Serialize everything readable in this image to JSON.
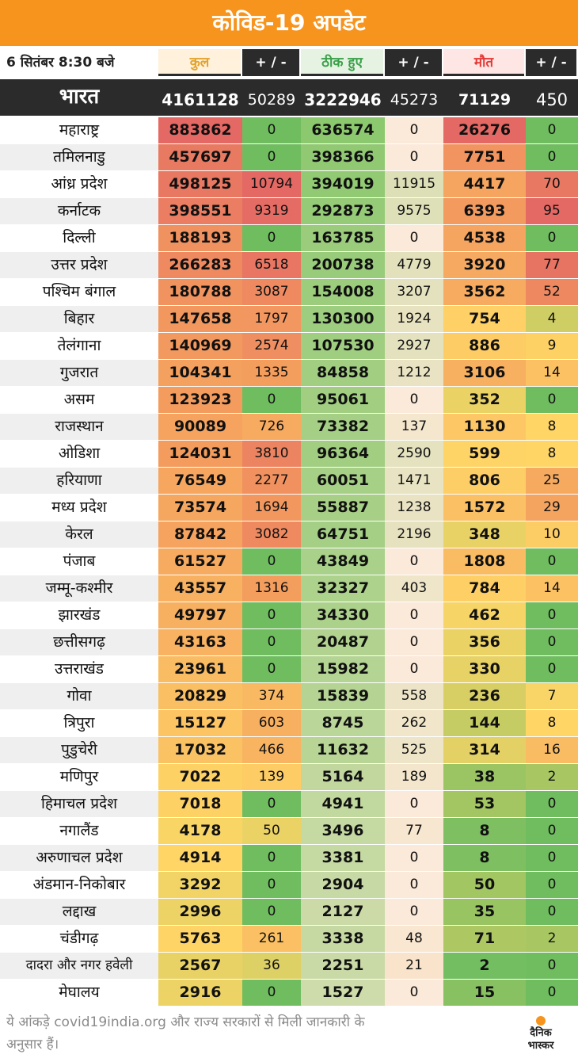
{
  "header": {
    "title": "कोविड-19 अपडेट",
    "date": "6 सितंबर  8:30 बजे"
  },
  "columns": [
    {
      "label": "कुल",
      "color": "#e2a32b"
    },
    {
      "label": "+ / -",
      "color": "#ffffff"
    },
    {
      "label": "ठीक हुए",
      "color": "#3aa04a"
    },
    {
      "label": "+ / -",
      "color": "#ffffff"
    },
    {
      "label": "मौत",
      "color": "#e53935"
    },
    {
      "label": "+ / -",
      "color": "#ffffff"
    }
  ],
  "india": {
    "name": "भारत",
    "values": [
      "4161128",
      "50289",
      "3222946",
      "45273",
      "71129",
      "450"
    ]
  },
  "chart_data": {
    "type": "table",
    "title": "कोविड-19 अपडेट",
    "columns": [
      "कुल",
      "+ / -",
      "ठीक हुए",
      "+ / -",
      "मौत",
      "+ / -"
    ],
    "rows": [
      {
        "name": "महाराष्ट्र",
        "values": [
          883862,
          0,
          636574,
          0,
          26276,
          0
        ]
      },
      {
        "name": "तमिलनाडु",
        "values": [
          457697,
          0,
          398366,
          0,
          7751,
          0
        ]
      },
      {
        "name": "आंध्र प्रदेश",
        "values": [
          498125,
          10794,
          394019,
          11915,
          4417,
          70
        ]
      },
      {
        "name": "कर्नाटक",
        "values": [
          398551,
          9319,
          292873,
          9575,
          6393,
          95
        ]
      },
      {
        "name": "दिल्ली",
        "values": [
          188193,
          0,
          163785,
          0,
          4538,
          0
        ]
      },
      {
        "name": "उत्तर प्रदेश",
        "values": [
          266283,
          6518,
          200738,
          4779,
          3920,
          77
        ]
      },
      {
        "name": "पश्चिम बंगाल",
        "values": [
          180788,
          3087,
          154008,
          3207,
          3562,
          52
        ]
      },
      {
        "name": "बिहार",
        "values": [
          147658,
          1797,
          130300,
          1924,
          754,
          4
        ]
      },
      {
        "name": "तेलंगाना",
        "values": [
          140969,
          2574,
          107530,
          2927,
          886,
          9
        ]
      },
      {
        "name": "गुजरात",
        "values": [
          104341,
          1335,
          84858,
          1212,
          3106,
          14
        ]
      },
      {
        "name": "असम",
        "values": [
          123923,
          0,
          95061,
          0,
          352,
          0
        ]
      },
      {
        "name": "राजस्थान",
        "values": [
          90089,
          726,
          73382,
          137,
          1130,
          8
        ]
      },
      {
        "name": "ओडिशा",
        "values": [
          124031,
          3810,
          96364,
          2590,
          599,
          8
        ]
      },
      {
        "name": "हरियाणा",
        "values": [
          76549,
          2277,
          60051,
          1471,
          806,
          25
        ]
      },
      {
        "name": "मध्य प्रदेश",
        "values": [
          73574,
          1694,
          55887,
          1238,
          1572,
          29
        ]
      },
      {
        "name": "केरल",
        "values": [
          87842,
          3082,
          64751,
          2196,
          348,
          10
        ]
      },
      {
        "name": "पंजाब",
        "values": [
          61527,
          0,
          43849,
          0,
          1808,
          0
        ]
      },
      {
        "name": "जम्मू-कश्मीर",
        "values": [
          43557,
          1316,
          32327,
          403,
          784,
          14
        ]
      },
      {
        "name": "झारखंड",
        "values": [
          49797,
          0,
          34330,
          0,
          462,
          0
        ]
      },
      {
        "name": "छत्तीसगढ़",
        "values": [
          43163,
          0,
          20487,
          0,
          356,
          0
        ]
      },
      {
        "name": "उत्तराखंड",
        "values": [
          23961,
          0,
          15982,
          0,
          330,
          0
        ]
      },
      {
        "name": "गोवा",
        "values": [
          20829,
          374,
          15839,
          558,
          236,
          7
        ]
      },
      {
        "name": "त्रिपुरा",
        "values": [
          15127,
          603,
          8745,
          262,
          144,
          8
        ]
      },
      {
        "name": "पुडुचेरी",
        "values": [
          17032,
          466,
          11632,
          525,
          314,
          16
        ]
      },
      {
        "name": "मणिपुर",
        "values": [
          7022,
          139,
          5164,
          189,
          38,
          2
        ]
      },
      {
        "name": "हिमाचल प्रदेश",
        "values": [
          7018,
          0,
          4941,
          0,
          53,
          0
        ]
      },
      {
        "name": "नगालैंड",
        "values": [
          4178,
          50,
          3496,
          77,
          8,
          0
        ]
      },
      {
        "name": "अरुणाचल प्रदेश",
        "values": [
          4914,
          0,
          3381,
          0,
          8,
          0
        ]
      },
      {
        "name": "अंडमान-निकोबार",
        "values": [
          3292,
          0,
          2904,
          0,
          50,
          0
        ]
      },
      {
        "name": "लद्दाख",
        "values": [
          2996,
          0,
          2127,
          0,
          35,
          0
        ]
      },
      {
        "name": "चंडीगढ़",
        "values": [
          5763,
          261,
          3338,
          48,
          71,
          2
        ]
      },
      {
        "name": "दादरा और नगर हवेली",
        "values": [
          2567,
          36,
          2251,
          21,
          2,
          0
        ]
      },
      {
        "name": "मेघालय",
        "values": [
          2916,
          0,
          1527,
          0,
          15,
          0
        ]
      }
    ]
  },
  "footer": {
    "note": "ये आंकड़े covid19india.org और राज्य सरकारों से मिली जानकारी के अनुसार हैं।",
    "logo_line1": "दैनिक",
    "logo_line2": "भास्कर"
  }
}
